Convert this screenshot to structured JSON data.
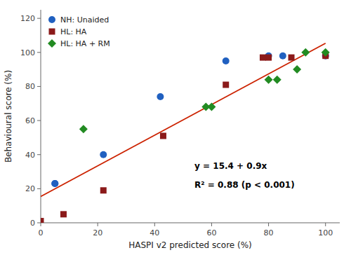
{
  "chart_data": {
    "type": "scatter",
    "xlabel": "HASPI v2 predicted score (%)",
    "ylabel": "Behavioural score (%)",
    "xlim": [
      0,
      105
    ],
    "ylim": [
      0,
      125
    ],
    "xticks": [
      0,
      20,
      40,
      60,
      80,
      100
    ],
    "yticks": [
      0,
      20,
      40,
      60,
      80,
      100,
      120
    ],
    "grid": false,
    "legend": "upper left",
    "series": [
      {
        "type": "line",
        "color": "#cc2200",
        "x": [
          0,
          100
        ],
        "values": [
          15.4,
          105.4
        ]
      },
      {
        "name": "NH: Unaided",
        "color": "#2060c0",
        "marker": "circle",
        "x": [
          5,
          5,
          22,
          42,
          65,
          80,
          85,
          100
        ],
        "values": [
          23,
          23,
          40,
          74,
          95,
          98,
          98,
          98
        ]
      },
      {
        "name": "HL: HA",
        "color": "#8b1a1a",
        "marker": "square",
        "x": [
          0,
          8,
          22,
          43,
          65,
          78,
          80,
          88,
          100
        ],
        "values": [
          1,
          5,
          19,
          51,
          81,
          97,
          97,
          97,
          98
        ]
      },
      {
        "name": "HL: HA + RM",
        "color": "#228b22",
        "marker": "diamond",
        "x": [
          15,
          58,
          60,
          80,
          83,
          90,
          93,
          100
        ],
        "values": [
          55,
          68,
          68,
          84,
          84,
          90,
          100,
          100
        ]
      }
    ],
    "annotations": [
      {
        "text": "y = 15.4 + 0.9x",
        "x": 54,
        "y": 33
      },
      {
        "text": "R² = 0.88 (p < 0.001)",
        "x": 54,
        "y": 22
      }
    ]
  }
}
